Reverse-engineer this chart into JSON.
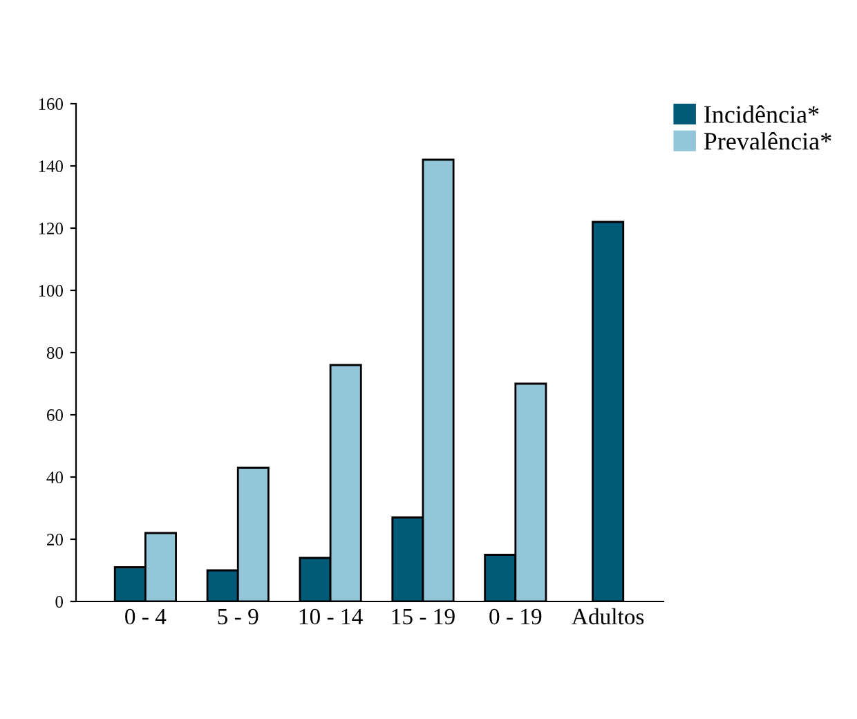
{
  "chart_data": {
    "type": "bar",
    "categories": [
      "0 - 4",
      "5 - 9",
      "10 - 14",
      "15 - 19",
      "0 - 19",
      "Adultos"
    ],
    "series": [
      {
        "name": "Incidência*",
        "color": "#005a78",
        "values": [
          11,
          10,
          14,
          27,
          15,
          122
        ]
      },
      {
        "name": "Prevalência*",
        "color": "#94c6da",
        "values": [
          22,
          43,
          76,
          142,
          70,
          null
        ]
      }
    ],
    "ylim": [
      0,
      160
    ],
    "yticks": [
      0,
      20,
      40,
      60,
      80,
      100,
      120,
      140,
      160
    ],
    "grid": false,
    "legend": "top right"
  }
}
